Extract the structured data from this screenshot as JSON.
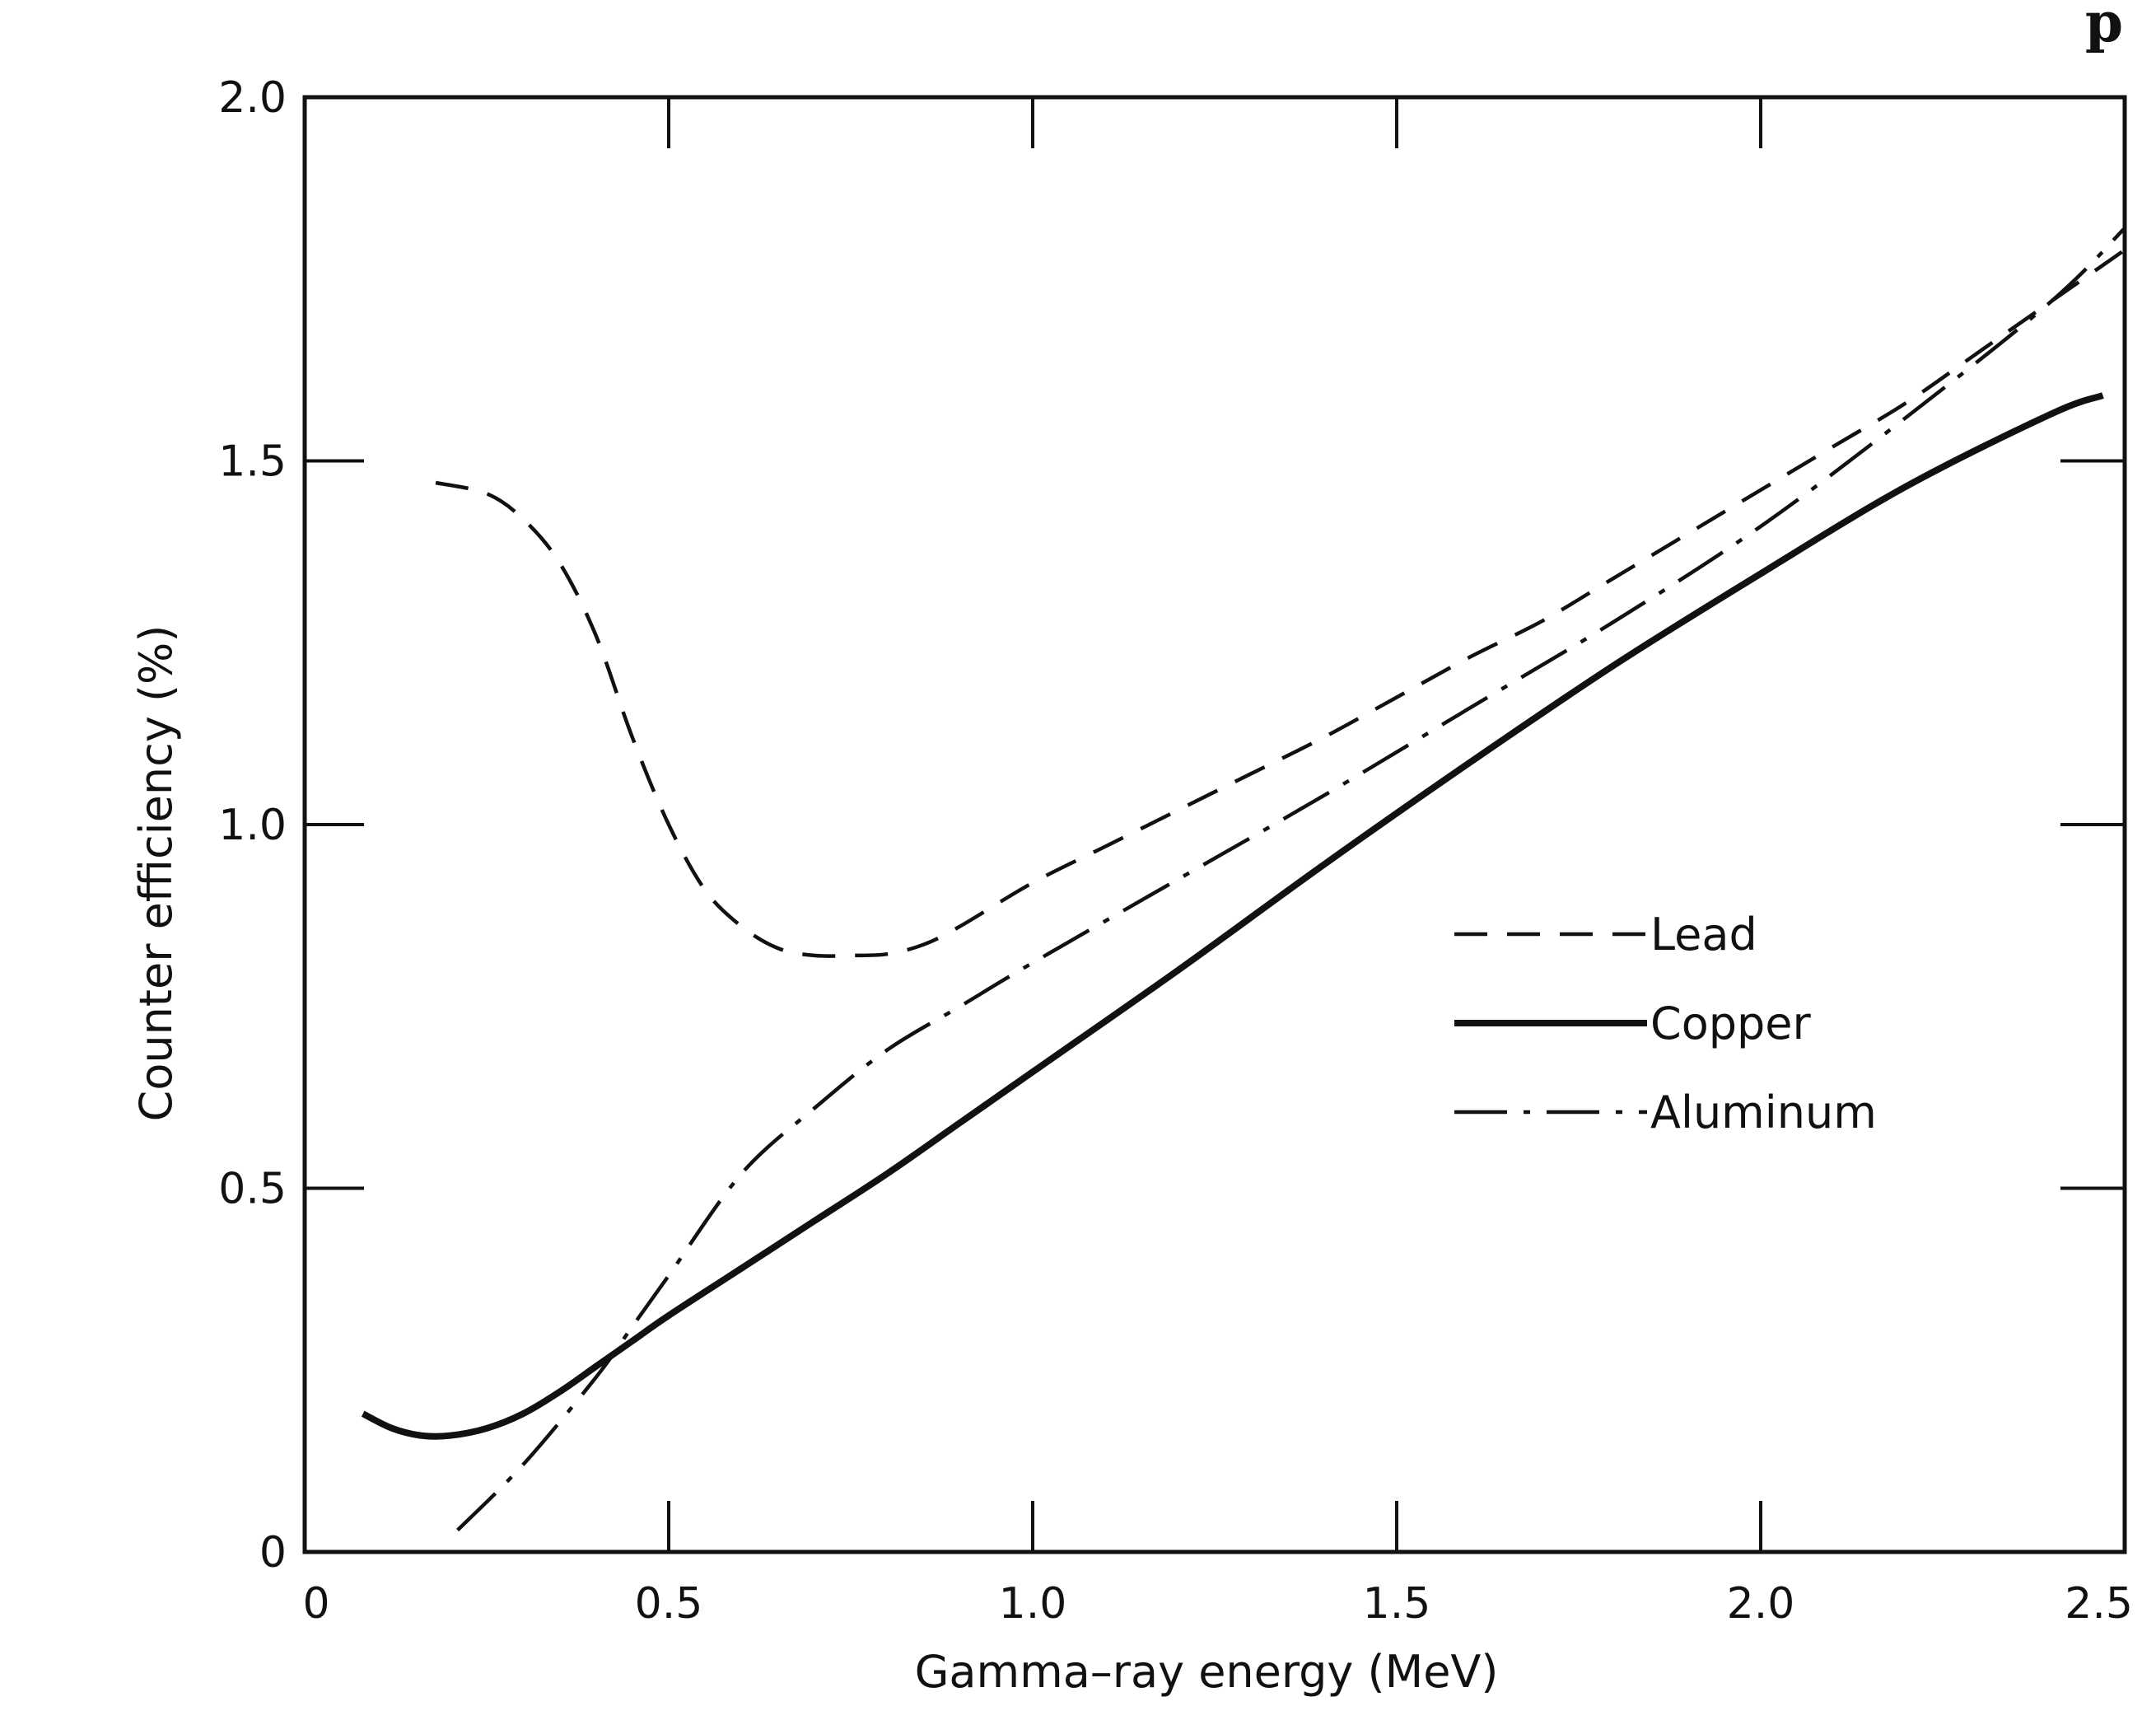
{
  "corner_text": "p",
  "chart_data": {
    "type": "line",
    "title": "",
    "xlabel": "Gamma–ray energy (MeV)",
    "ylabel": "Counter efficiency (%)",
    "xlim": [
      0,
      2.5
    ],
    "ylim": [
      0,
      2.0
    ],
    "grid": false,
    "legend_placement": "center-right",
    "x_ticks": [
      {
        "value": 0,
        "label": "0"
      },
      {
        "value": 0.5,
        "label": "0.5"
      },
      {
        "value": 1.0,
        "label": "1.0"
      },
      {
        "value": 1.5,
        "label": "1.5"
      },
      {
        "value": 2.0,
        "label": "2.0"
      },
      {
        "value": 2.5,
        "label": "2.5"
      }
    ],
    "y_ticks": [
      {
        "value": 0,
        "label": "0"
      },
      {
        "value": 0.5,
        "label": "0.5"
      },
      {
        "value": 1.0,
        "label": "1.0"
      },
      {
        "value": 1.5,
        "label": "1.5"
      },
      {
        "value": 2.0,
        "label": "2.0"
      }
    ],
    "series": [
      {
        "name": "Lead",
        "style": "dashed",
        "color": "#111111",
        "x": [
          0.18,
          0.25,
          0.3,
          0.35,
          0.4,
          0.45,
          0.5,
          0.55,
          0.6,
          0.65,
          0.7,
          0.75,
          0.8,
          0.85,
          0.9,
          1.0,
          1.1,
          1.2,
          1.3,
          1.4,
          1.5,
          1.6,
          1.7,
          1.8,
          1.9,
          2.0,
          2.1,
          2.2,
          2.3,
          2.4,
          2.5
        ],
        "y": [
          1.47,
          1.455,
          1.42,
          1.36,
          1.26,
          1.12,
          1.0,
          0.91,
          0.86,
          0.83,
          0.82,
          0.82,
          0.822,
          0.835,
          0.86,
          0.92,
          0.97,
          1.02,
          1.07,
          1.12,
          1.175,
          1.23,
          1.28,
          1.34,
          1.4,
          1.46,
          1.52,
          1.58,
          1.65,
          1.72,
          1.79
        ]
      },
      {
        "name": "Copper",
        "style": "solid",
        "color": "#111111",
        "x": [
          0.08,
          0.12,
          0.16,
          0.2,
          0.25,
          0.3,
          0.35,
          0.4,
          0.45,
          0.5,
          0.6,
          0.7,
          0.8,
          0.9,
          1.0,
          1.2,
          1.4,
          1.6,
          1.8,
          2.0,
          2.2,
          2.4,
          2.47
        ],
        "y": [
          0.19,
          0.17,
          0.16,
          0.16,
          0.17,
          0.19,
          0.22,
          0.255,
          0.29,
          0.325,
          0.39,
          0.455,
          0.52,
          0.59,
          0.66,
          0.8,
          0.945,
          1.085,
          1.22,
          1.345,
          1.465,
          1.565,
          1.59
        ]
      },
      {
        "name": "Aluminum",
        "style": "dash-dot",
        "color": "#111111",
        "x": [
          0.21,
          0.3,
          0.4,
          0.45,
          0.5,
          0.6,
          0.7,
          0.8,
          0.9,
          1.0,
          1.2,
          1.4,
          1.6,
          1.8,
          2.0,
          2.2,
          2.4,
          2.5
        ],
        "y": [
          0.03,
          0.12,
          0.24,
          0.31,
          0.38,
          0.52,
          0.61,
          0.69,
          0.75,
          0.81,
          0.925,
          1.04,
          1.16,
          1.28,
          1.41,
          1.56,
          1.72,
          1.82
        ]
      }
    ]
  }
}
